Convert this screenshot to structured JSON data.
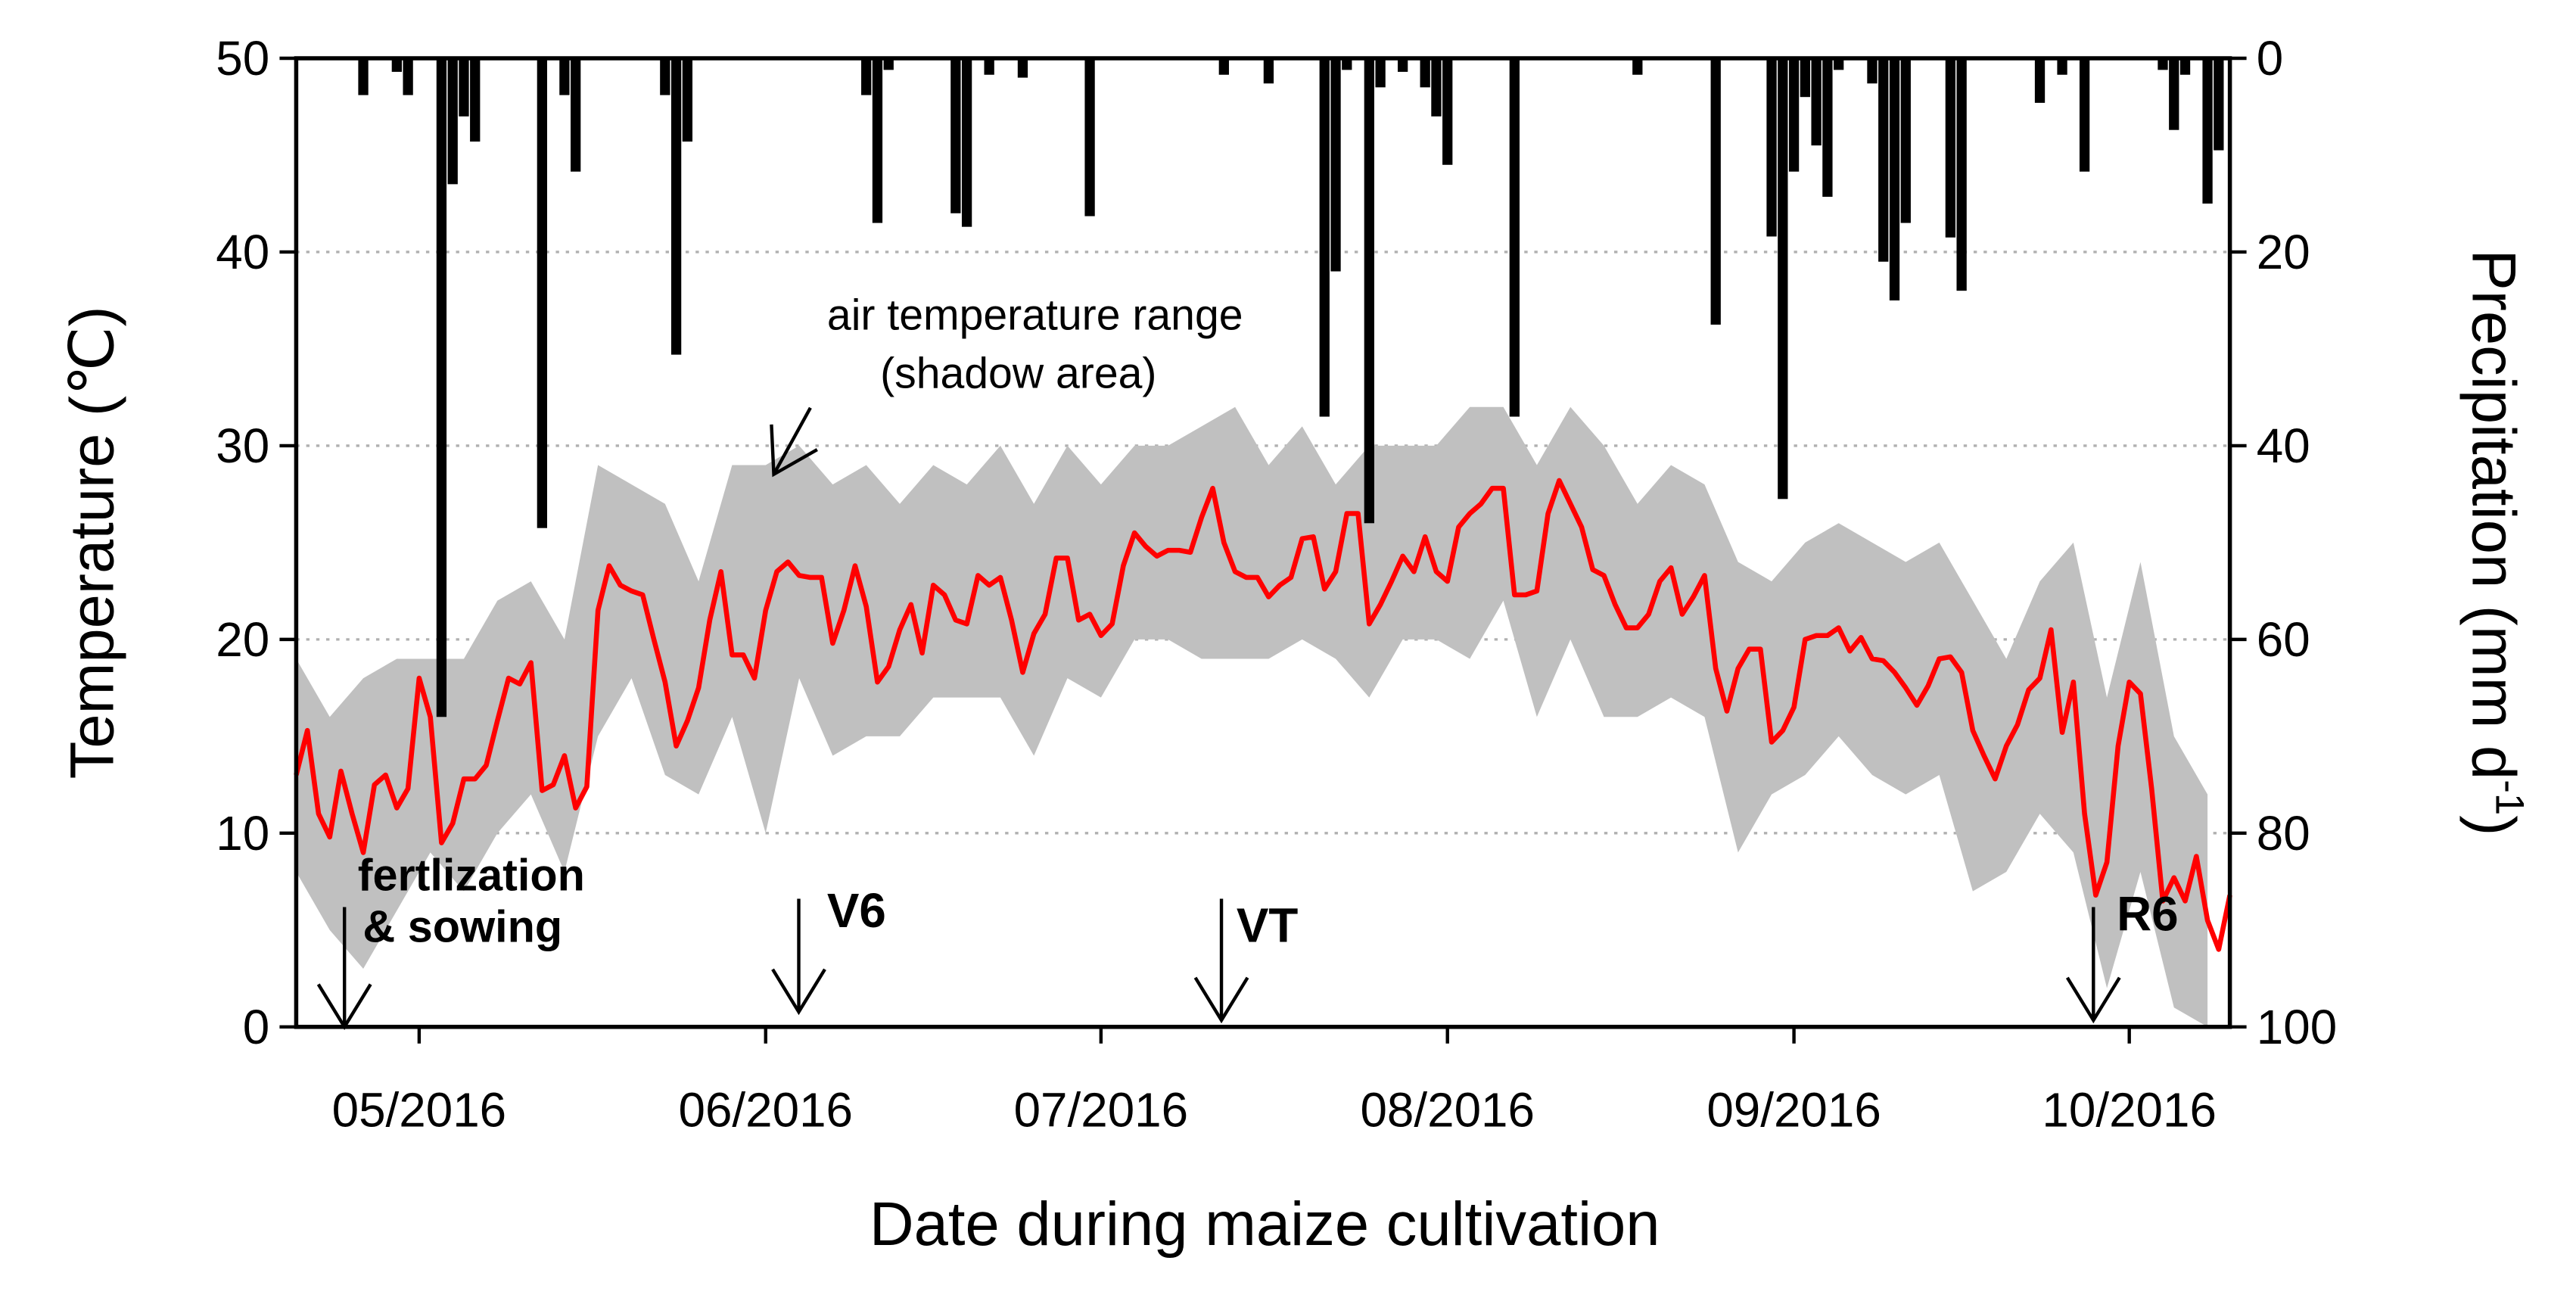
{
  "chart_data": {
    "type": "line",
    "xlabel": "Date during maize cultivation",
    "ylabel": "Temperature (℃)",
    "y2label": {
      "text": "Precipitation (mm d",
      "superscript": "-1",
      "tail": ")"
    },
    "xlim": [
      -11,
      162
    ],
    "xticks": [
      {
        "value": 0,
        "label": "05/2016"
      },
      {
        "value": 31,
        "label": "06/2016"
      },
      {
        "value": 61,
        "label": "07/2016"
      },
      {
        "value": 92,
        "label": "08/2016"
      },
      {
        "value": 123,
        "label": "09/2016"
      },
      {
        "value": 153,
        "label": "10/2016"
      }
    ],
    "ylim": [
      0,
      50
    ],
    "yticks": [
      0,
      10,
      20,
      30,
      40,
      50
    ],
    "y2lim": [
      100,
      0
    ],
    "y2ticks": [
      0,
      20,
      40,
      60,
      80,
      100
    ],
    "grid": true,
    "series": [
      {
        "type": "area",
        "color": "#c0c0c0",
        "x": [
          -11,
          -8,
          -5,
          -2,
          1,
          4,
          7,
          10,
          13,
          16,
          19,
          22,
          25,
          28,
          31,
          34,
          37,
          40,
          43,
          46,
          49,
          52,
          55,
          58,
          61,
          64,
          67,
          70,
          73,
          76,
          79,
          82,
          85,
          88,
          91,
          94,
          97,
          100,
          103,
          106,
          109,
          112,
          115,
          118,
          121,
          124,
          127,
          130,
          133,
          136,
          139,
          142,
          145,
          148,
          151,
          154,
          157,
          160
        ],
        "max": [
          19,
          16,
          18,
          19,
          19,
          19,
          22,
          23,
          20,
          29,
          28,
          27,
          23,
          29,
          29,
          30,
          28,
          29,
          27,
          29,
          28,
          30,
          27,
          30,
          28,
          30,
          30,
          31,
          32,
          29,
          31,
          28,
          30,
          30,
          30,
          32,
          32,
          29,
          32,
          30,
          27,
          29,
          28,
          24,
          23,
          25,
          26,
          25,
          24,
          25,
          22,
          19,
          23,
          25,
          17,
          24,
          15,
          12
        ],
        "min": [
          8,
          5,
          3,
          6,
          9,
          7,
          10,
          12,
          8,
          15,
          18,
          13,
          12,
          16,
          10,
          18,
          14,
          15,
          15,
          17,
          17,
          17,
          14,
          18,
          17,
          20,
          20,
          19,
          19,
          19,
          20,
          19,
          17,
          20,
          20,
          19,
          22,
          16,
          20,
          16,
          16,
          17,
          16,
          9,
          12,
          13,
          15,
          13,
          12,
          13,
          7,
          8,
          11,
          9,
          2,
          8,
          1,
          0
        ]
      },
      {
        "type": "bar",
        "axis": "y2",
        "color": "#000000",
        "x": [
          -5,
          -2,
          -1,
          2,
          3,
          4,
          5,
          11,
          13,
          14,
          22,
          23,
          24,
          40,
          41,
          42,
          48,
          49,
          51,
          54,
          60,
          72,
          76,
          81,
          82,
          83,
          85,
          86,
          88,
          90,
          91,
          92,
          98,
          109,
          116,
          121,
          122,
          123,
          124,
          125,
          126,
          127,
          130,
          131,
          132,
          133,
          137,
          138,
          145,
          147,
          149,
          156,
          157,
          158,
          160,
          161
        ],
        "values": [
          3.8,
          1.4,
          3.8,
          68,
          13,
          6,
          8.6,
          48.5,
          3.8,
          11.7,
          3.8,
          30.6,
          8.6,
          3.8,
          17,
          1.2,
          16,
          17.4,
          1.7,
          2,
          16.3,
          1.7,
          2.6,
          37,
          22,
          1.2,
          48,
          3,
          1.4,
          3,
          6,
          11,
          37,
          1.7,
          27.5,
          18.4,
          45.5,
          11.7,
          4,
          9,
          14.3,
          1.2,
          2.6,
          21,
          25,
          17,
          18.5,
          24,
          4.6,
          1.7,
          11.7,
          1.2,
          7.4,
          1.7,
          15,
          9.5
        ]
      },
      {
        "type": "line",
        "color": "#ff0000",
        "x": [
          -11,
          -10,
          -9,
          -8,
          -7,
          -6,
          -5,
          -4,
          -3,
          -2,
          -1,
          0,
          1,
          2,
          3,
          4,
          5,
          6,
          7,
          8,
          9,
          10,
          11,
          12,
          13,
          14,
          15,
          16,
          17,
          18,
          19,
          20,
          21,
          22,
          23,
          24,
          25,
          26,
          27,
          28,
          29,
          30,
          31,
          32,
          33,
          34,
          35,
          36,
          37,
          38,
          39,
          40,
          41,
          42,
          43,
          44,
          45,
          46,
          47,
          48,
          49,
          50,
          51,
          52,
          53,
          54,
          55,
          56,
          57,
          58,
          59,
          60,
          61,
          62,
          63,
          64,
          65,
          66,
          67,
          68,
          69,
          70,
          71,
          72,
          73,
          74,
          75,
          76,
          77,
          78,
          79,
          80,
          81,
          82,
          83,
          84,
          85,
          86,
          87,
          88,
          89,
          90,
          91,
          92,
          93,
          94,
          95,
          96,
          97,
          98,
          99,
          100,
          101,
          102,
          103,
          104,
          105,
          106,
          107,
          108,
          109,
          110,
          111,
          112,
          113,
          114,
          115,
          116,
          117,
          118,
          119,
          120,
          121,
          122,
          123,
          124,
          125,
          126,
          127,
          128,
          129,
          130,
          131,
          132,
          133,
          134,
          135,
          136,
          137,
          138,
          139,
          140,
          141,
          142,
          143,
          144,
          145,
          146,
          147,
          148,
          149,
          150,
          151,
          152,
          153,
          154,
          155,
          156,
          157,
          158,
          159,
          160,
          161,
          162
        ],
        "values": [
          13,
          15.3,
          11,
          9.8,
          13.2,
          11,
          9,
          12.5,
          13,
          11.3,
          12.3,
          18,
          16,
          9.5,
          10.5,
          12.8,
          12.8,
          13.5,
          15.8,
          18,
          17.7,
          18.8,
          12.2,
          12.5,
          14,
          11.3,
          12.4,
          21.5,
          23.8,
          22.8,
          22.5,
          22.3,
          20,
          17.8,
          14.5,
          15.8,
          17.5,
          21,
          23.5,
          19.2,
          19.2,
          18,
          21.5,
          23.5,
          24,
          23.3,
          23.2,
          23.2,
          19.8,
          21.5,
          23.8,
          21.7,
          17.8,
          18.6,
          20.5,
          21.8,
          19.3,
          22.8,
          22.3,
          21,
          20.8,
          23.3,
          22.8,
          23.2,
          21,
          18.3,
          20.3,
          21.3,
          24.2,
          24.2,
          21,
          21.3,
          20.2,
          20.8,
          23.8,
          25.5,
          24.8,
          24.3,
          24.6,
          24.6,
          24.5,
          26.3,
          27.8,
          25,
          23.5,
          23.2,
          23.2,
          22.2,
          22.8,
          23.2,
          25.2,
          25.3,
          22.6,
          23.5,
          26.5,
          26.5,
          20.8,
          21.8,
          23,
          24.3,
          23.5,
          25.3,
          23.5,
          23,
          25.8,
          26.5,
          27,
          27.8,
          27.8,
          22.3,
          22.3,
          22.5,
          26.5,
          28.2,
          27,
          25.8,
          23.6,
          23.3,
          21.8,
          20.6,
          20.6,
          21.3,
          23,
          23.7,
          21.3,
          22.2,
          23.3,
          18.5,
          16.3,
          18.5,
          19.5,
          19.5,
          14.7,
          15.3,
          16.5,
          20,
          20.2,
          20.2,
          20.6,
          19.4,
          20.1,
          19,
          18.9,
          18.3,
          17.5,
          16.6,
          17.6,
          19,
          19.1,
          18.3,
          15.3,
          14,
          12.8,
          14.5,
          15.6,
          17.4,
          18,
          20.5,
          15.2,
          17.8,
          11,
          6.8,
          8.5,
          14.5,
          17.8,
          17.2,
          12.3,
          6.5,
          7.7,
          6.5,
          8.8,
          5.5,
          4,
          6.8
        ]
      }
    ],
    "annotations": [
      "fertlization",
      "& sowing",
      "V6",
      "VT",
      "R6",
      "air temperature range",
      "(shadow area)"
    ]
  }
}
